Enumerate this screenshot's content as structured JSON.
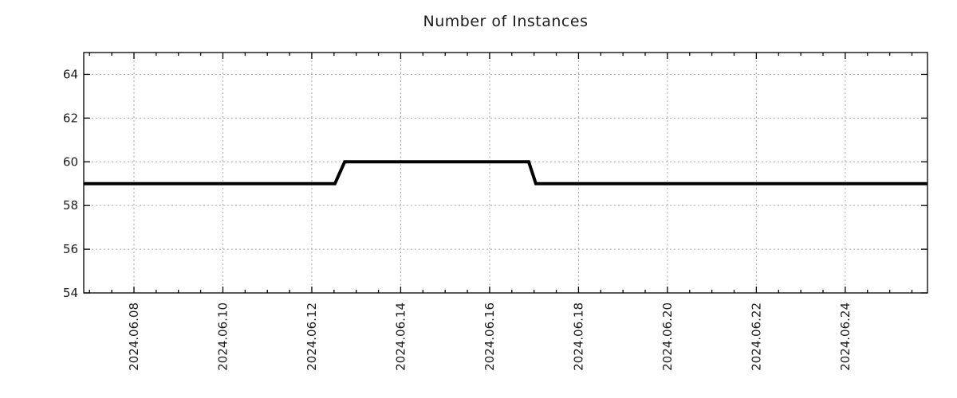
{
  "chart_data": {
    "type": "line",
    "title": "Number of Instances",
    "xlabel": "",
    "ylabel": "",
    "x_unit": "day of June 2024",
    "xlim": [
      6.87,
      25.85
    ],
    "ylim": [
      54,
      65
    ],
    "y_ticks": [
      54,
      56,
      58,
      60,
      62,
      64
    ],
    "x_ticks": [
      {
        "value": 8,
        "label": "2024.06.08"
      },
      {
        "value": 10,
        "label": "2024.06.10"
      },
      {
        "value": 12,
        "label": "2024.06.12"
      },
      {
        "value": 14,
        "label": "2024.06.14"
      },
      {
        "value": 16,
        "label": "2024.06.16"
      },
      {
        "value": 18,
        "label": "2024.06.18"
      },
      {
        "value": 20,
        "label": "2024.06.20"
      },
      {
        "value": 22,
        "label": "2024.06.22"
      },
      {
        "value": 24,
        "label": "2024.06.24"
      }
    ],
    "x_minor_tick_step": 0.5,
    "grid": true,
    "legend_position": "none",
    "series": [
      {
        "name": "instances",
        "color": "#000000",
        "line_width": 4,
        "points": [
          [
            6.87,
            59
          ],
          [
            12.52,
            59
          ],
          [
            12.74,
            60
          ],
          [
            16.88,
            60
          ],
          [
            17.04,
            59
          ],
          [
            25.85,
            59
          ]
        ]
      }
    ],
    "colors": {
      "line": "#000000",
      "grid": "#a6a6a6",
      "border": "#000000",
      "text": "#1c1c1c",
      "background": "#ffffff"
    }
  }
}
